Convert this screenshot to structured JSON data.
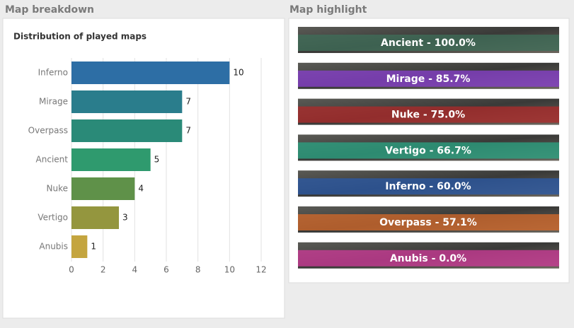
{
  "left_panel_title": "Map breakdown",
  "right_panel_title": "Map highlight",
  "chart_data": {
    "type": "barh",
    "title": "Distribution of played maps",
    "categories": [
      "Inferno",
      "Mirage",
      "Overpass",
      "Ancient",
      "Nuke",
      "Vertigo",
      "Anubis"
    ],
    "values": [
      10,
      7,
      7,
      5,
      4,
      3,
      1
    ],
    "colors": [
      "#2d6ea5",
      "#2a7d8c",
      "#2a8a78",
      "#2f9a6e",
      "#5f9149",
      "#94963e",
      "#c4a53f"
    ],
    "xlim": [
      0,
      12
    ],
    "xticks": [
      0,
      2,
      4,
      6,
      8,
      10,
      12
    ],
    "grid": true
  },
  "highlights": [
    {
      "label": "Ancient - 100.0%",
      "color": "#3f6f5a"
    },
    {
      "label": "Mirage - 85.7%",
      "color": "#8a3fd0"
    },
    {
      "label": "Nuke - 75.0%",
      "color": "#b02a2a"
    },
    {
      "label": "Vertigo - 66.7%",
      "color": "#2aa584"
    },
    {
      "label": "Inferno - 60.0%",
      "color": "#2a5aa8"
    },
    {
      "label": "Overpass - 57.1%",
      "color": "#d66a2a"
    },
    {
      "label": "Anubis - 0.0%",
      "color": "#d03a9a"
    }
  ]
}
